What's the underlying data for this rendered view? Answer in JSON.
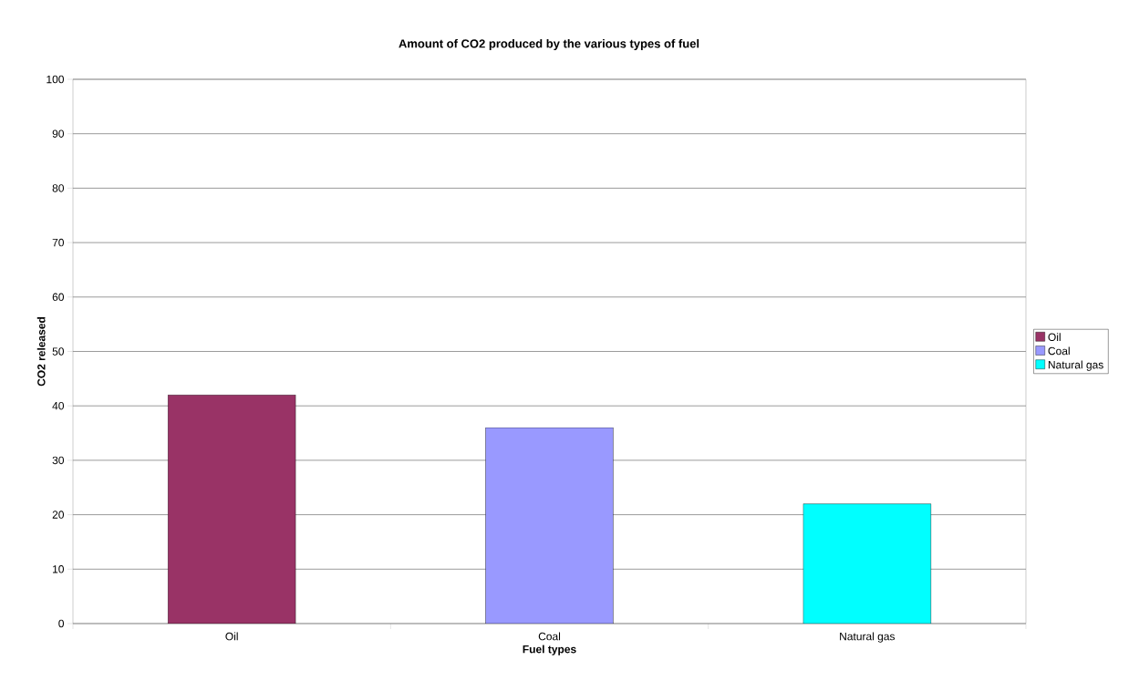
{
  "chart_data": {
    "type": "bar",
    "title": "Amount of CO2 produced by the various types of fuel",
    "xlabel": "Fuel types",
    "ylabel": "CO2 released",
    "categories": [
      "Oil",
      "Coal",
      "Natural gas"
    ],
    "series": [
      {
        "name": "Oil",
        "color": "#993366",
        "values": [
          42,
          null,
          null
        ]
      },
      {
        "name": "Coal",
        "color": "#9999ff",
        "values": [
          null,
          36,
          null
        ]
      },
      {
        "name": "Natural gas",
        "color": "#00ffff",
        "values": [
          null,
          null,
          22
        ]
      }
    ],
    "ylim": [
      0,
      100
    ],
    "yticks": [
      0,
      10,
      20,
      30,
      40,
      50,
      60,
      70,
      80,
      90,
      100
    ],
    "grid": "y",
    "legend": "right"
  }
}
